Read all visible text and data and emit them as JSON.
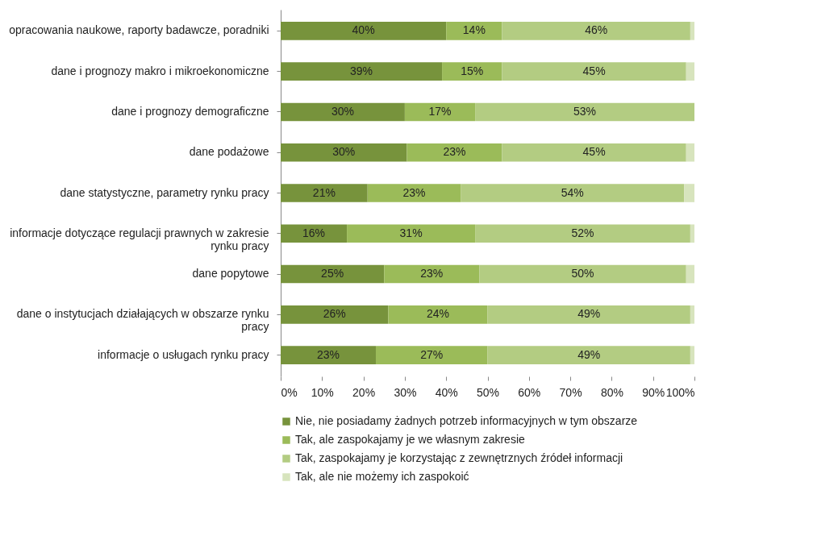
{
  "chart_data": {
    "type": "bar",
    "orientation": "horizontal",
    "stacked": true,
    "categories": [
      "opracowania naukowe, raporty badawcze, poradniki",
      "dane i prognozy makro i mikroekonomiczne",
      "dane i prognozy demograficzne",
      "dane podażowe",
      "dane statystyczne, parametry rynku pracy",
      "informacje dotyczące regulacji prawnych w zakresie rynku pracy",
      "dane popytowe",
      "dane o instytucjach działających w obszarze rynku pracy",
      "informacje o usługach rynku pracy"
    ],
    "series": [
      {
        "name": "Nie, nie posiadamy żadnych potrzeb informacyjnych w tym obszarze",
        "color": "#77933c",
        "values": [
          40,
          39,
          30,
          30.5,
          21,
          16,
          25,
          26,
          23
        ],
        "value_labels": [
          "40%",
          "39%",
          "30%",
          "30%",
          "21%",
          "16%",
          "25%",
          "26%",
          "23%"
        ]
      },
      {
        "name": "Tak, ale zaspokajamy je we własnym zakresie",
        "color": "#9bbb59",
        "values": [
          13.5,
          14.5,
          17,
          23,
          22.5,
          31,
          23,
          24,
          27
        ],
        "value_labels": [
          "14%",
          "15%",
          "17%",
          "23%",
          "23%",
          "31%",
          "23%",
          "24%",
          "27%"
        ]
      },
      {
        "name": "Tak, zaspokajamy je korzystając z zewnętrznych źródeł informacji",
        "color": "#b3cc82",
        "values": [
          45.5,
          44.5,
          53,
          44.5,
          54,
          52,
          50,
          49,
          49
        ],
        "value_labels": [
          "46%",
          "45%",
          "53%",
          "45%",
          "54%",
          "52%",
          "50%",
          "49%",
          "49%"
        ]
      },
      {
        "name": "Tak, ale nie możemy ich zaspokoić",
        "color": "#d7e4bd",
        "values": [
          1,
          2,
          0,
          2,
          2.5,
          1,
          2,
          1,
          1
        ]
      }
    ],
    "xlim": [
      0,
      100
    ],
    "xticks": [
      {
        "value": 0,
        "label": "0%"
      },
      {
        "value": 10,
        "label": "10%"
      },
      {
        "value": 20,
        "label": "20%"
      },
      {
        "value": 30,
        "label": "30%"
      },
      {
        "value": 40,
        "label": "40%"
      },
      {
        "value": 50,
        "label": "50%"
      },
      {
        "value": 60,
        "label": "60%"
      },
      {
        "value": 70,
        "label": "70%"
      },
      {
        "value": 80,
        "label": "80%"
      },
      {
        "value": 90,
        "label": "90%"
      },
      {
        "value": 100,
        "label": "100%"
      }
    ],
    "grid": false,
    "legend": "bottom"
  }
}
